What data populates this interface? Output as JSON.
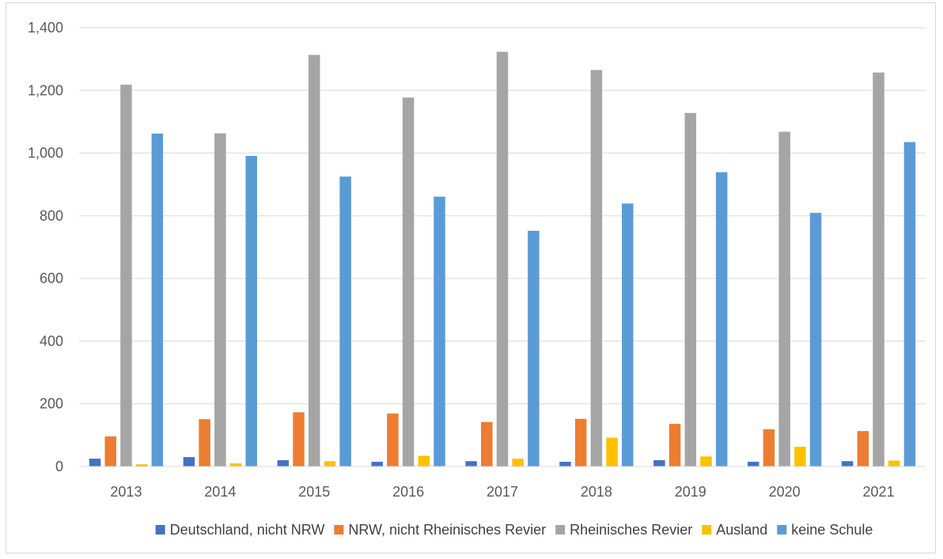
{
  "chart_data": {
    "type": "bar",
    "title": "",
    "xlabel": "",
    "ylabel": "",
    "categories": [
      "2013",
      "2014",
      "2015",
      "2016",
      "2017",
      "2018",
      "2019",
      "2020",
      "2021"
    ],
    "ylim": [
      0,
      1400
    ],
    "yticks": [
      0,
      200,
      400,
      600,
      800,
      1000,
      1200,
      1400
    ],
    "ytick_labels": [
      "0",
      "200",
      "400",
      "600",
      "800",
      "1,000",
      "1,200",
      "1,400"
    ],
    "grid": true,
    "legend_position": "bottom",
    "series": [
      {
        "name": "Deutschland, nicht NRW",
        "color": "#4472c4",
        "values": [
          25,
          30,
          20,
          15,
          17,
          15,
          20,
          15,
          17
        ]
      },
      {
        "name": "NRW, nicht Rheinisches Revier",
        "color": "#ed7d31",
        "values": [
          96,
          151,
          173,
          169,
          142,
          152,
          136,
          119,
          113
        ]
      },
      {
        "name": "Rheinisches Revier",
        "color": "#a5a5a5",
        "values": [
          1218,
          1063,
          1313,
          1177,
          1323,
          1265,
          1128,
          1068,
          1257
        ]
      },
      {
        "name": "Ausland",
        "color": "#ffc000",
        "values": [
          7,
          10,
          17,
          34,
          25,
          92,
          32,
          63,
          19
        ]
      },
      {
        "name": "keine Schule",
        "color": "#5b9bd5",
        "values": [
          1062,
          991,
          925,
          861,
          752,
          839,
          939,
          809,
          1035
        ]
      }
    ]
  }
}
